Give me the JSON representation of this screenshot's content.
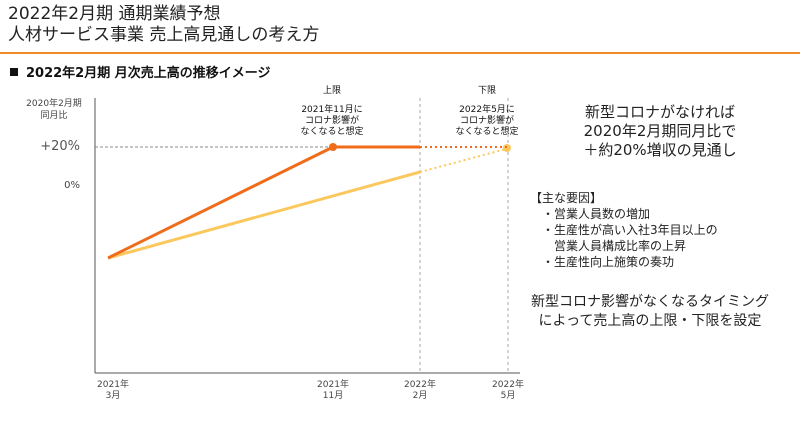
{
  "header": {
    "title_line1": "2022年2月期 通期業績予想",
    "title_line2": "人材サービス事業 売上高見通しの考え方"
  },
  "section": {
    "title": "2022年2月期 月次売上高の推移イメージ"
  },
  "y_axis": {
    "label_line1": "2020年2月期",
    "label_line2": "同月比",
    "ticks": [
      {
        "label": "+20%",
        "value": 20
      },
      {
        "label": "0%",
        "value": 0
      }
    ]
  },
  "x_axis": {
    "ticks": [
      {
        "line1": "2021年",
        "line2": "3月"
      },
      {
        "line1": "2021年",
        "line2": "11月"
      },
      {
        "line1": "2022年",
        "line2": "2月"
      },
      {
        "line1": "2022年",
        "line2": "5月"
      }
    ]
  },
  "annotations": {
    "upper": {
      "head": "上限",
      "line1": "2021年11月に",
      "line2": "コロナ影響が",
      "line3": "なくなると想定"
    },
    "lower": {
      "head": "下限",
      "line1": "2022年5月に",
      "line2": "コロナ影響が",
      "line3": "なくなると想定"
    }
  },
  "outlook": {
    "line1": "新型コロナがなければ",
    "line2": "2020年2月期同月比で",
    "line3": "＋約20%増収の見通し"
  },
  "factors": {
    "head": "【主な要因】",
    "items": [
      "・営業人員数の増加",
      "・生産性が高い入社3年目以上の",
      "　営業人員構成比率の上昇",
      "・生産性向上施策の奏功"
    ]
  },
  "footer": {
    "line1": "新型コロナ影響がなくなるタイミング",
    "line2": "によって売上高の上限・下限を設定"
  },
  "colors": {
    "accent_orange": "#f08a24",
    "upper_line": "#ef6c1a",
    "lower_line": "#fbc85e",
    "axis": "#555555",
    "divider": "#aaaaaa"
  }
}
